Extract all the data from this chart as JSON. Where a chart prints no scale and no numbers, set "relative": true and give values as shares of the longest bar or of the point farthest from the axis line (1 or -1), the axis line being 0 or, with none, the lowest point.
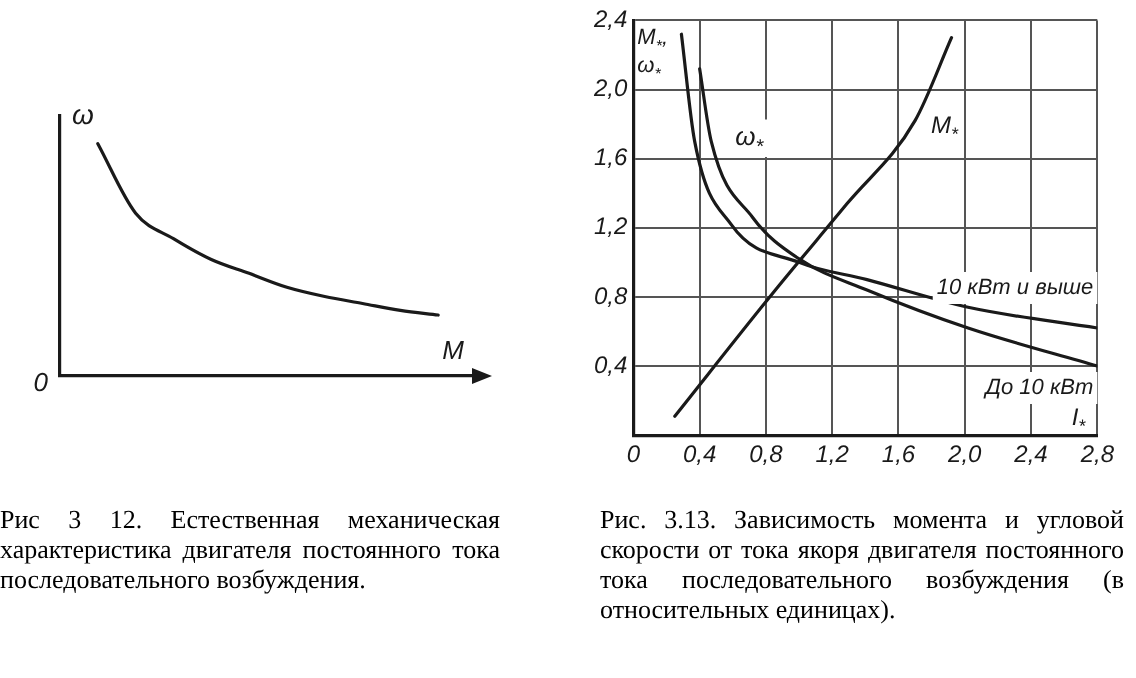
{
  "chart_data": [
    {
      "type": "line",
      "relative": true,
      "xlabel": "M",
      "ylabel": "ω",
      "grid": false,
      "legend": false,
      "marker": "none",
      "line_style": "solid",
      "categories": [
        null,
        null,
        null,
        null,
        null,
        null,
        null,
        null,
        null,
        null,
        null,
        null
      ],
      "series": [
        {
          "color": "#1a1a1a",
          "values": [
            null,
            1,
            0.7,
            0.59,
            0.5,
            0.44,
            0.38,
            0.34,
            0.31,
            0.28,
            0.26,
            null
          ]
        }
      ],
      "annotations": [
        "0",
        "Рис 3 12. Естественная механическая характеристика двигателя постоянного тока последовательного возбуждения."
      ]
    },
    {
      "type": "line",
      "xlabel": "I$_{*}$",
      "ylabel": "M$_{*}$, ω$_{*}$",
      "grid": true,
      "legend": false,
      "marker": "none",
      "line_style": "solid",
      "xlim": [
        0,
        2.8
      ],
      "ylim": [
        0,
        2.4
      ],
      "xticks": [
        0,
        {
          "value": 0.4,
          "label": "0,4"
        },
        {
          "value": 0.8,
          "label": "0,8"
        },
        {
          "value": 1.2,
          "label": "1,2"
        },
        {
          "value": 1.6,
          "label": "1,6"
        },
        {
          "value": 2.0,
          "label": "2,0"
        },
        {
          "value": 2.4,
          "label": "2,4"
        },
        {
          "value": 2.8,
          "label": "2,8"
        }
      ],
      "yticks": [
        {
          "value": 0.4,
          "label": "0,4"
        },
        {
          "value": 0.8,
          "label": "0,8"
        },
        {
          "value": 1.2,
          "label": "1,2"
        },
        {
          "value": 1.6,
          "label": "1,6"
        },
        {
          "value": 2.0,
          "label": "2,0"
        },
        {
          "value": 2.4,
          "label": "2,4"
        }
      ],
      "series": [
        {
          "name": "M$_{*}$",
          "color": "#1a1a1a",
          "x": [
            0.25,
            0.84,
            1.29,
            1.7,
            1.92
          ],
          "values": [
            0.11,
            0.82,
            1.34,
            1.82,
            2.3
          ]
        },
        {
          "name": "10 кВт и выше",
          "color": "#1a1a1a",
          "x": [
            0.29,
            0.37,
            0.59,
            1.0,
            1.41,
            2.02,
            2.8
          ],
          "values": [
            2.32,
            1.7,
            1.22,
            1.0,
            0.9,
            0.74,
            0.62
          ]
        },
        {
          "name": "До 10 кВт",
          "color": "#1a1a1a",
          "x": [
            0.4,
            0.47,
            0.72,
            1.0,
            1.41,
            2.02,
            2.8
          ],
          "values": [
            2.12,
            1.7,
            1.26,
            1.02,
            0.84,
            0.62,
            0.4
          ]
        }
      ],
      "annotations": [
        {
          "text": "ω$_{*}$",
          "x": 0.47,
          "y": 1.7
        },
        "Рис. 3.13. Зависимость момента и угловой скорости от тока якоря двигателя постоянного тока последовательного возбуждения (в относительных единицах)."
      ]
    }
  ]
}
